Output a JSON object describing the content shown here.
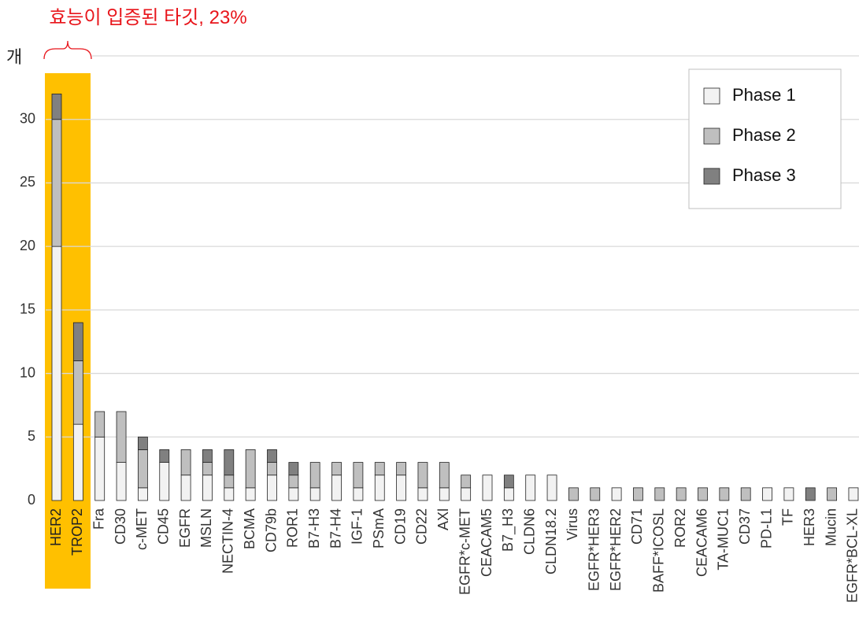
{
  "chart_data": {
    "type": "stacked-bar",
    "annotation": "효능이 입증된 타깃, 23%",
    "y_label": "개",
    "categories": [
      "HER2",
      "TROP2",
      "Fra",
      "CD30",
      "c-MET",
      "CD45",
      "EGFR",
      "MSLN",
      "NECTIN-4",
      "BCMA",
      "CD79b",
      "ROR1",
      "B7-H3",
      "B7-H4",
      "IGF-1",
      "PSmA",
      "CD19",
      "CD22",
      "AXl",
      "EGFR*c-MET",
      "CEACAM5",
      "B7_H3",
      "CLDN6",
      "CLDN18.2",
      "Virus",
      "EGFR*HER3",
      "EGFR*HER2",
      "CD71",
      "BAFF*ICOSL",
      "ROR2",
      "CEACAM6",
      "TA-MUC1",
      "CD37",
      "PD-L1",
      "TF",
      "HER3",
      "Mucin",
      "EGFR*BCL-XL"
    ],
    "series": [
      {
        "name": "Phase 1",
        "color": "#f2f2f2",
        "values": [
          20,
          6,
          5,
          3,
          1,
          3,
          2,
          2,
          1,
          1,
          2,
          1,
          1,
          2,
          1,
          2,
          2,
          1,
          1,
          1,
          2,
          1,
          2,
          2,
          0,
          0,
          1,
          0,
          0,
          0,
          0,
          0,
          0,
          1,
          1,
          0,
          0,
          1
        ]
      },
      {
        "name": "Phase 2",
        "color": "#bfbfbf",
        "values": [
          10,
          5,
          2,
          4,
          3,
          0,
          2,
          1,
          1,
          3,
          1,
          1,
          2,
          1,
          2,
          1,
          1,
          2,
          2,
          1,
          0,
          0,
          0,
          0,
          1,
          1,
          0,
          1,
          1,
          1,
          1,
          1,
          1,
          0,
          0,
          0,
          1,
          0
        ]
      },
      {
        "name": "Phase 3",
        "color": "#808080",
        "values": [
          2,
          3,
          0,
          0,
          1,
          1,
          0,
          1,
          2,
          0,
          1,
          1,
          0,
          0,
          0,
          0,
          0,
          0,
          0,
          0,
          0,
          1,
          0,
          0,
          0,
          0,
          0,
          0,
          0,
          0,
          0,
          0,
          0,
          0,
          0,
          1,
          0,
          0
        ]
      }
    ],
    "highlight_color": "#ffc000",
    "ylim": [
      0,
      35
    ],
    "yticks": [
      0,
      5,
      10,
      15,
      20,
      25,
      30
    ],
    "grid": true,
    "legend": "top-right"
  }
}
